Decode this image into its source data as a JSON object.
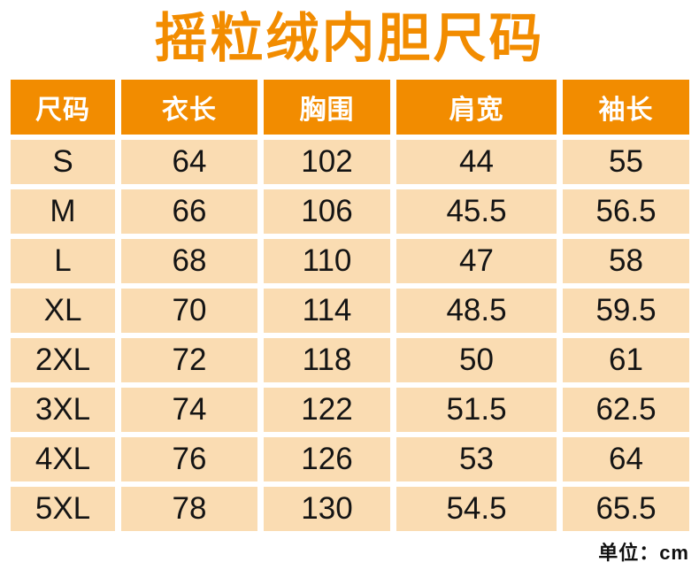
{
  "title": "摇粒绒内胆尺码",
  "unit_note": "单位：cm",
  "colors": {
    "accent_orange": "#F28C00",
    "cell_background": "#FADCB2",
    "header_text": "#FFFFFF",
    "body_text": "#141414"
  },
  "chart_data": {
    "type": "table",
    "title": "摇粒绒内胆尺码",
    "unit": "cm",
    "columns": [
      "尺码",
      "衣长",
      "胸围",
      "肩宽",
      "袖长"
    ],
    "rows": [
      [
        "S",
        "64",
        "102",
        "44",
        "55"
      ],
      [
        "M",
        "66",
        "106",
        "45.5",
        "56.5"
      ],
      [
        "L",
        "68",
        "110",
        "47",
        "58"
      ],
      [
        "XL",
        "70",
        "114",
        "48.5",
        "59.5"
      ],
      [
        "2XL",
        "72",
        "118",
        "50",
        "61"
      ],
      [
        "3XL",
        "74",
        "122",
        "51.5",
        "62.5"
      ],
      [
        "4XL",
        "76",
        "126",
        "53",
        "64"
      ],
      [
        "5XL",
        "78",
        "130",
        "54.5",
        "65.5"
      ]
    ]
  }
}
